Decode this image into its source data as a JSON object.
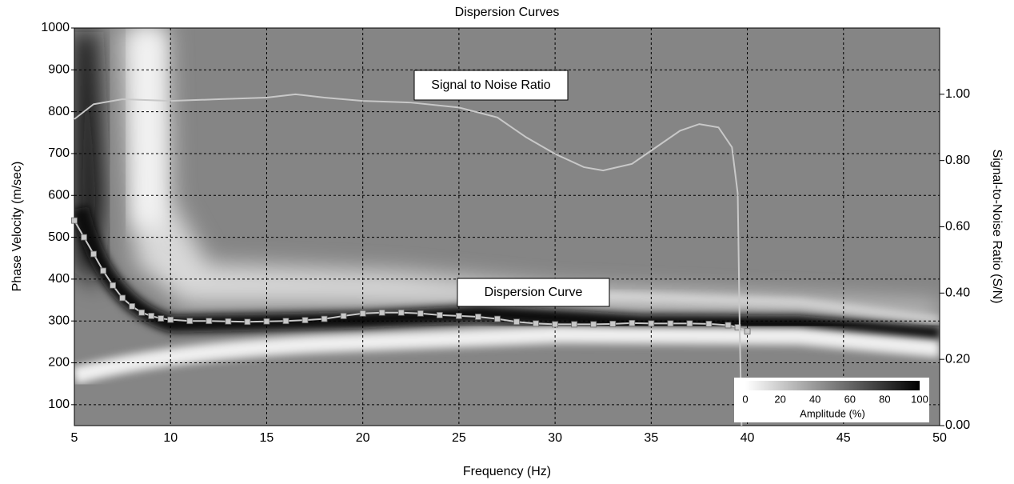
{
  "chart_data": {
    "type": "line",
    "title": "Dispersion Curves",
    "x_label": "Frequency (Hz)",
    "y_label": "Phase Velocity (m/sec)",
    "y2_label": "Signal-to-Noise Ratio (S/N)",
    "xlim": [
      5,
      50
    ],
    "xticks": [
      5,
      10,
      15,
      20,
      25,
      30,
      35,
      40,
      45,
      50
    ],
    "ylim": [
      50,
      1000
    ],
    "yticks": [
      100,
      200,
      300,
      400,
      500,
      600,
      700,
      800,
      900,
      1000
    ],
    "y2lim": [
      0,
      1.2
    ],
    "y2ticks": [
      {
        "value": 0,
        "label": "0.00"
      },
      {
        "value": 0.2,
        "label": "0.20"
      },
      {
        "value": 0.4,
        "label": "0.40"
      },
      {
        "value": 0.6,
        "label": "0.60"
      },
      {
        "value": 0.8,
        "label": "0.80"
      },
      {
        "value": 1,
        "label": "1.00"
      }
    ],
    "grid": true,
    "series": [
      {
        "name": "Dispersion Curve",
        "color": "#c8c8c8",
        "marker": "square",
        "x": [
          5,
          5.5,
          6,
          6.5,
          7,
          7.5,
          8,
          8.5,
          9,
          9.5,
          10,
          11,
          12,
          13,
          14,
          15,
          16,
          17,
          18,
          19,
          20,
          21,
          22,
          23,
          24,
          25,
          26,
          27,
          28,
          29,
          30,
          31,
          32,
          33,
          34,
          35,
          36,
          37,
          38,
          39,
          39.5,
          40
        ],
        "values": [
          540,
          500,
          460,
          420,
          385,
          355,
          335,
          320,
          312,
          306,
          303,
          300,
          300,
          299,
          298,
          299,
          300,
          302,
          305,
          312,
          318,
          320,
          320,
          318,
          314,
          312,
          310,
          305,
          298,
          294,
          292,
          292,
          292,
          293,
          295,
          294,
          294,
          294,
          293,
          290,
          285,
          275
        ]
      },
      {
        "name": "Signal to Noise Ratio",
        "color": "#c8c8c8",
        "axis": "y2",
        "x": [
          5,
          6,
          7.5,
          10,
          12.5,
          15,
          16.5,
          18,
          20,
          22.5,
          25,
          27,
          28.5,
          30,
          31.5,
          32.5,
          34,
          35,
          36.5,
          37.5,
          38.5,
          39.2,
          39.5,
          39.6,
          39.7
        ],
        "values": [
          0.925,
          0.97,
          0.985,
          0.98,
          0.985,
          0.99,
          1.0,
          0.99,
          0.98,
          0.975,
          0.96,
          0.93,
          0.87,
          0.82,
          0.78,
          0.77,
          0.79,
          0.83,
          0.89,
          0.91,
          0.9,
          0.84,
          0.7,
          0.3,
          0
        ]
      }
    ],
    "annotations": [
      "Signal to Noise Ratio",
      "Dispersion Curve"
    ],
    "colorbar": {
      "label": "Amplitude (%)",
      "ticks": [
        0,
        20,
        40,
        60,
        80,
        100
      ]
    }
  }
}
